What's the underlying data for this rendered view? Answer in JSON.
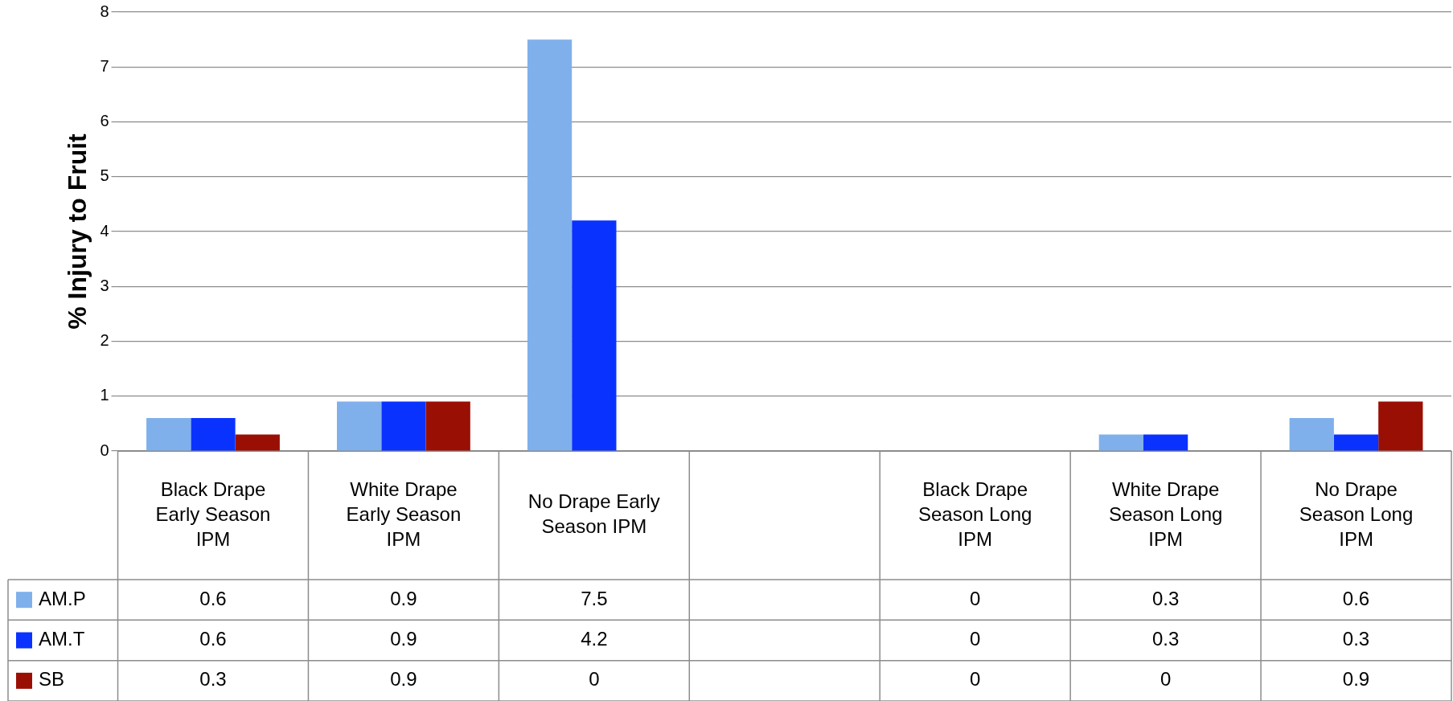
{
  "chart_data": {
    "type": "bar",
    "ylabel": "% Injury to Fruit",
    "categories": [
      "Black Drape Early Season IPM",
      "White Drape Early Season IPM",
      "No Drape Early Season IPM",
      null,
      "Black Drape Season Long IPM",
      "White Drape Season Long IPM",
      "No Drape Season Long IPM"
    ],
    "series": [
      {
        "name": "AM.P",
        "color": "#7fb0ec",
        "values": [
          0.6,
          0.9,
          7.5,
          null,
          0,
          0.3,
          0.6
        ]
      },
      {
        "name": "AM.T",
        "color": "#0a32ff",
        "values": [
          0.6,
          0.9,
          4.2,
          null,
          0,
          0.3,
          0.3
        ]
      },
      {
        "name": "SB",
        "color": "#9a0f04",
        "values": [
          0.3,
          0.9,
          0,
          null,
          0,
          0,
          0.9
        ]
      }
    ],
    "ylim": [
      0,
      8
    ],
    "yticks": [
      0,
      1,
      2,
      3,
      4,
      5,
      6,
      7,
      8
    ],
    "grid": "y",
    "legend": "bottom",
    "data_labels": true
  }
}
